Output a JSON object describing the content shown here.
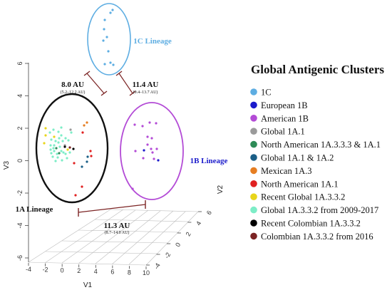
{
  "chart_data": {
    "type": "scatter",
    "subtype": "3d-scatter",
    "axes": {
      "x": {
        "label": "V1",
        "ticks": [
          "-4",
          "-2",
          "0",
          "2",
          "4",
          "6",
          "8",
          "10"
        ]
      },
      "y": {
        "label": "V2",
        "ticks": [
          "-4",
          "-2",
          "0",
          "2",
          "4",
          "6"
        ]
      },
      "z": {
        "label": "V3",
        "ticks": [
          "-6",
          "-4",
          "-2",
          "0",
          "2",
          "4",
          "6"
        ]
      }
    },
    "grid": true,
    "legend": {
      "title": "Global Antigenic Clusters",
      "placement": "right",
      "entries": [
        {
          "name": "1C",
          "color": "#5dade2"
        },
        {
          "name": "European 1B",
          "color": "#1a1acb"
        },
        {
          "name": "American 1B",
          "color": "#b34bd6"
        },
        {
          "name": "Global 1A.1",
          "color": "#9a9a9a"
        },
        {
          "name": "North American 1A.3.3.3 & 1A.1",
          "color": "#2e8b57"
        },
        {
          "name": "Global 1A.1 & 1A.2",
          "color": "#1a5e86"
        },
        {
          "name": "Mexican 1A.3",
          "color": "#e67e22"
        },
        {
          "name": "North American 1A.1",
          "color": "#e02020"
        },
        {
          "name": "Recent Global 1A.3.3.2",
          "color": "#e8d51a"
        },
        {
          "name": "Global 1A.3.3.2 from 2009-2017",
          "color": "#7dedc7"
        },
        {
          "name": "Recent Colombian 1A.3.3.2",
          "color": "#000000"
        },
        {
          "name": "Colombian 1A.3.3.2 from 2016",
          "color": "#7b2323"
        }
      ]
    },
    "lineages": [
      {
        "label": "1C Lineage",
        "color": "#5dade2"
      },
      {
        "label": "1B Lineage",
        "color": "#1a1acb"
      },
      {
        "label": "1A Lineage",
        "color": "#111111"
      }
    ],
    "distances": [
      {
        "between": "1A Lineage - 1C Lineage",
        "value": "8.0 AU",
        "range": "(5.2–12.2 AU)"
      },
      {
        "between": "1C Lineage - 1B Lineage",
        "value": "11.4 AU",
        "range": "(9.4–13.7 AU)"
      },
      {
        "between": "1A Lineage - 1B Lineage",
        "value": "11.3 AU",
        "range": "(8.7–14.0 AU)"
      }
    ],
    "points_screen_note_removed": true,
    "clusters": [
      {
        "cluster": "1C",
        "count": 10
      },
      {
        "cluster": "American 1B",
        "count": 14
      },
      {
        "cluster": "European 1B",
        "count": 2
      },
      {
        "cluster": "Global 1A.3.3.2 from 2009-2017",
        "count": 30
      }
    ]
  }
}
